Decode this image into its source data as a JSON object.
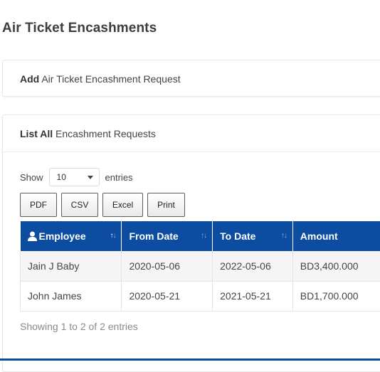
{
  "page": {
    "title": "Air Ticket Encashments"
  },
  "add_panel": {
    "title_bold": "Add",
    "title_rest": " Air Ticket Encashment Request"
  },
  "list_panel": {
    "title_bold": "List All",
    "title_rest": " Encashment Requests",
    "show_label": "Show",
    "entries_label": "entries",
    "page_length": "10",
    "export_buttons": [
      "PDF",
      "CSV",
      "Excel",
      "Print"
    ],
    "info": "Showing 1 to 2 of 2 entries"
  },
  "table": {
    "columns": [
      {
        "label": "Employee",
        "icon": "user-icon"
      },
      {
        "label": "From Date"
      },
      {
        "label": "To Date"
      },
      {
        "label": "Amount"
      }
    ],
    "rows": [
      {
        "employee": "Jain J Baby",
        "from": "2020-05-06",
        "to": "2022-05-06",
        "amount": "BD3,400.000"
      },
      {
        "employee": "John James",
        "from": "2020-05-21",
        "to": "2021-05-21",
        "amount": "BD1,700.000"
      }
    ]
  },
  "colors": {
    "header_bg": "#0c4da2",
    "accent_bar": "#0c4da2"
  }
}
